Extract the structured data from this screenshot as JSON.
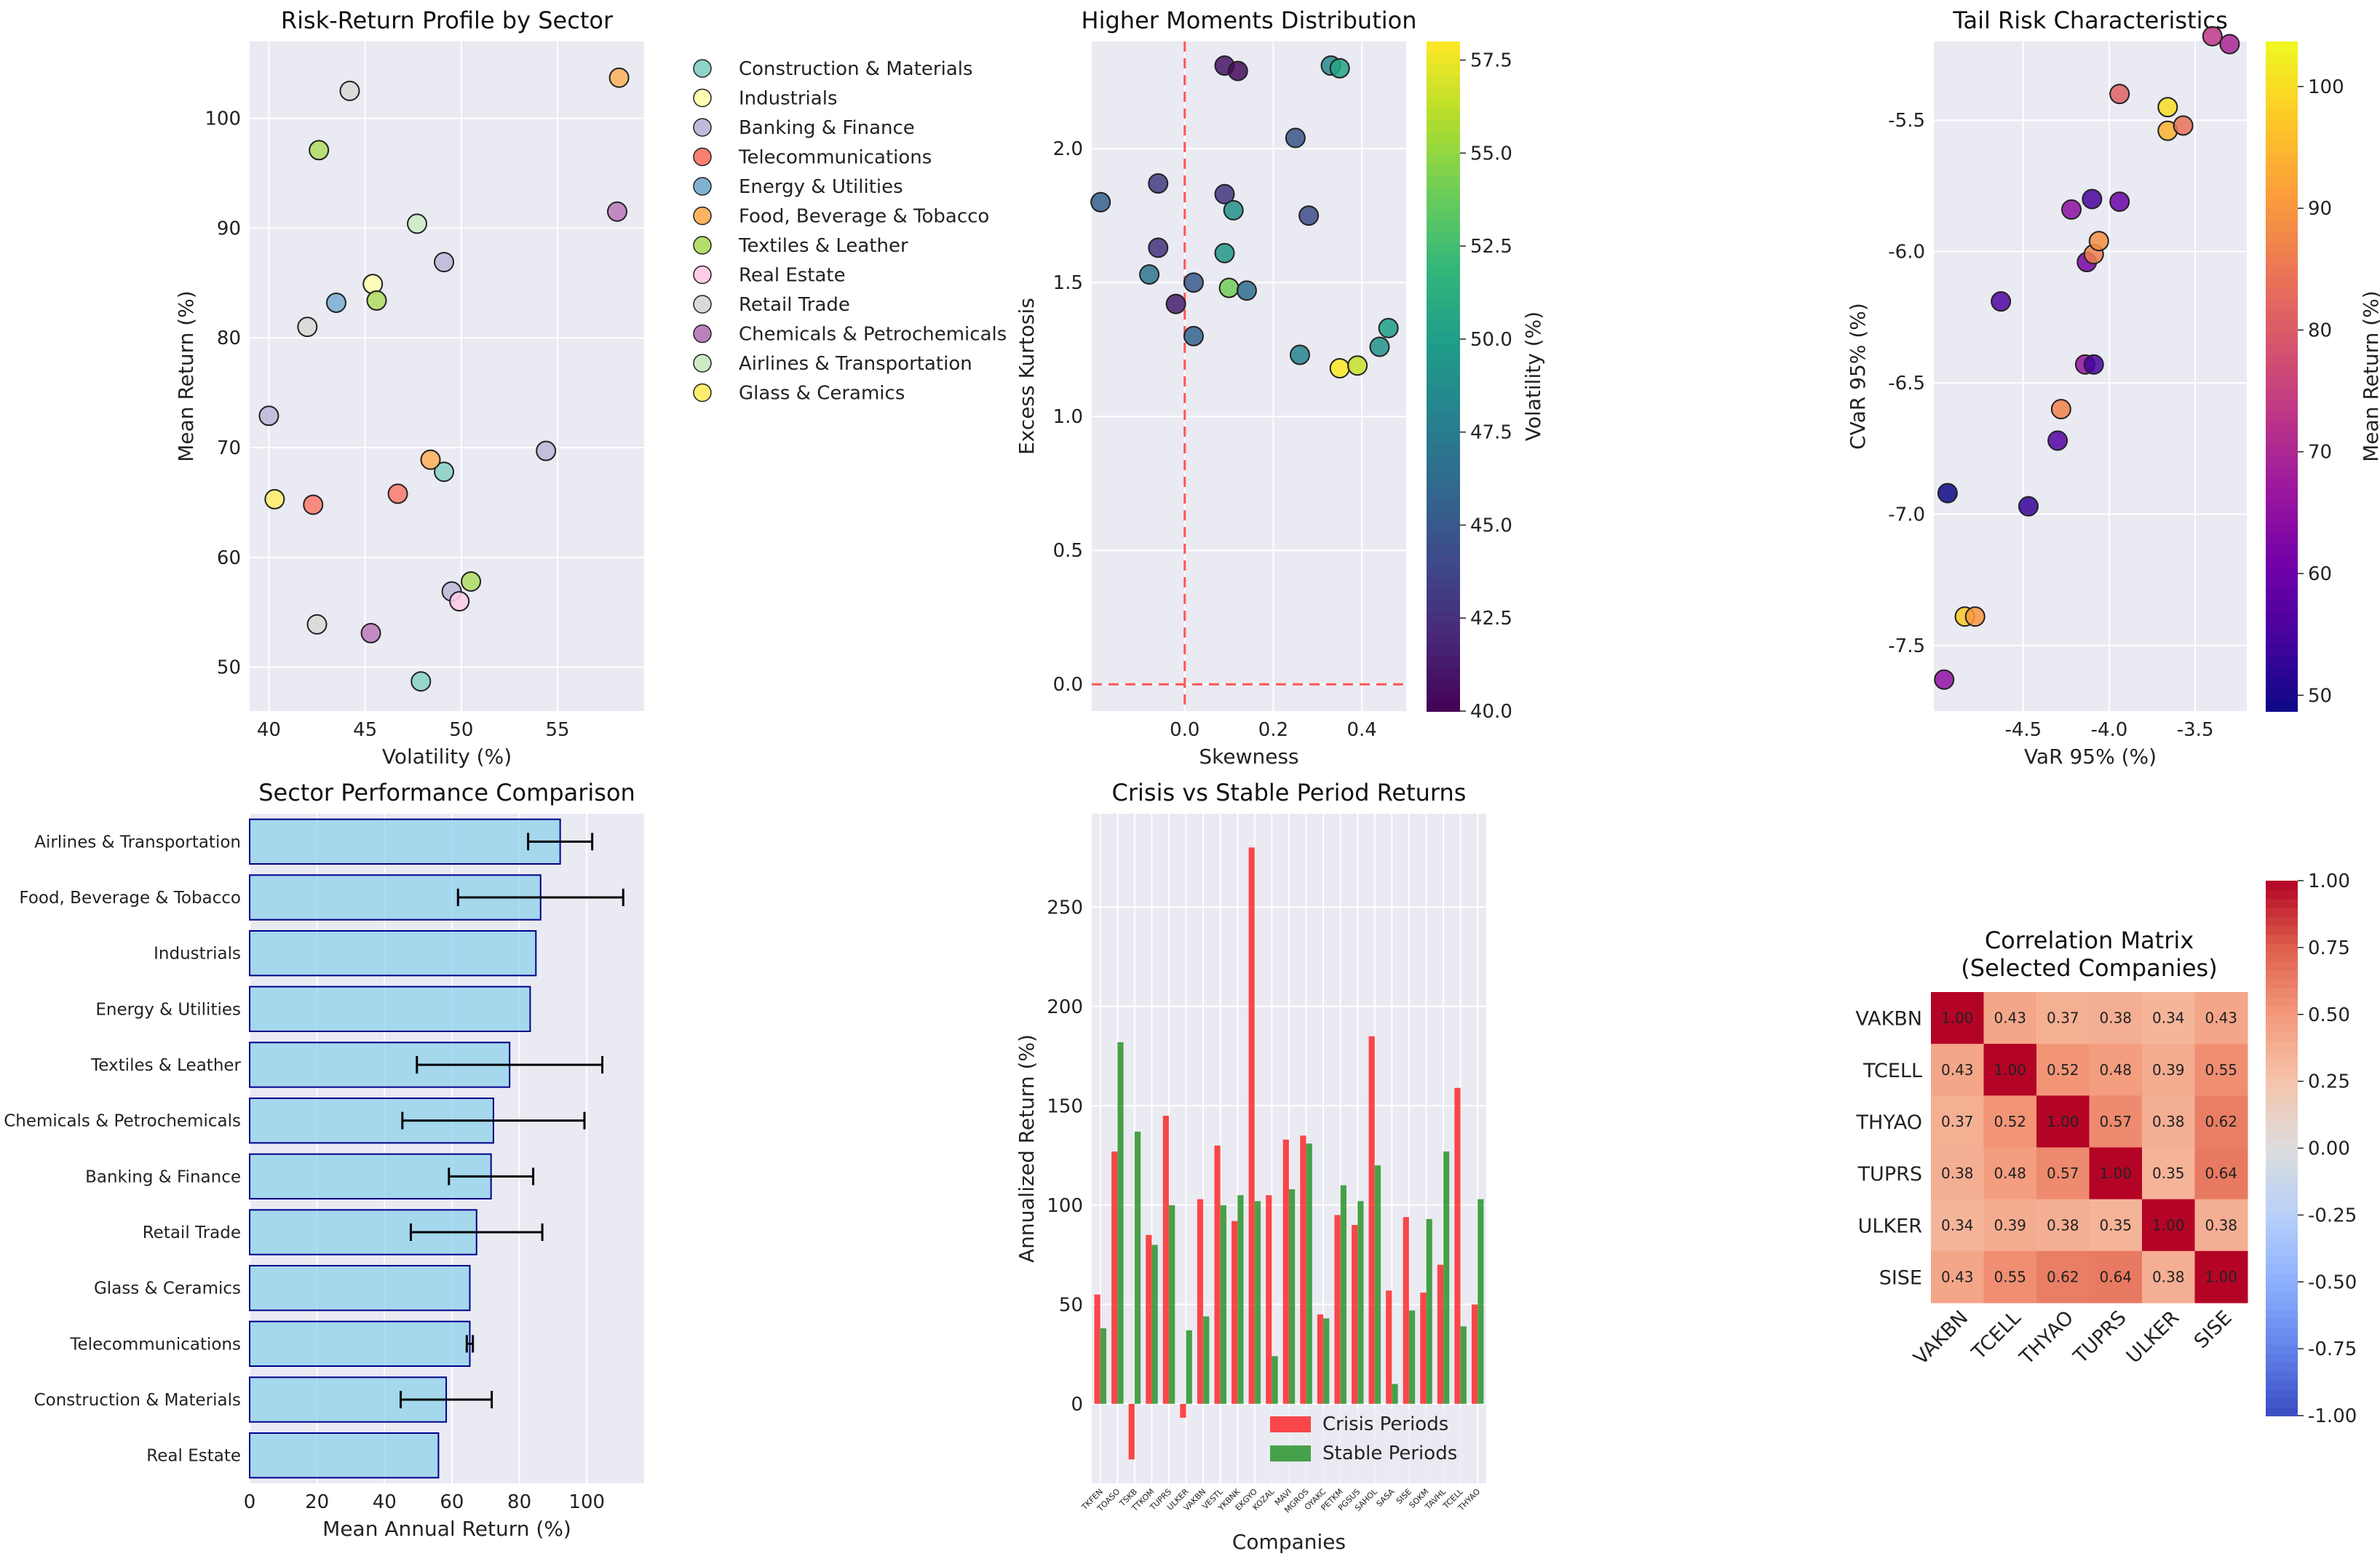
{
  "figure": {
    "background": "#ffffff",
    "plot_bg": "#eaeaf2",
    "grid_color": "#ffffff"
  },
  "chart_data": [
    {
      "id": "risk-return",
      "type": "scatter",
      "title": "Risk-Return Profile by Sector",
      "xlabel": "Volatility (%)",
      "ylabel": "Mean Return (%)",
      "xlim": [
        39,
        59.5
      ],
      "ylim": [
        46,
        107
      ],
      "xticks": [
        40,
        45,
        50,
        55
      ],
      "yticks": [
        50,
        60,
        70,
        80,
        90,
        100
      ],
      "legend_position": "outside-right",
      "sectors": [
        {
          "name": "Construction & Materials",
          "color": "#8dd3c7"
        },
        {
          "name": "Industrials",
          "color": "#ffffb3"
        },
        {
          "name": "Banking & Finance",
          "color": "#bebada"
        },
        {
          "name": "Telecommunications",
          "color": "#fb8072"
        },
        {
          "name": "Energy & Utilities",
          "color": "#80b1d3"
        },
        {
          "name": "Food, Beverage & Tobacco",
          "color": "#fdb462"
        },
        {
          "name": "Textiles & Leather",
          "color": "#b3de69"
        },
        {
          "name": "Real Estate",
          "color": "#fccde5"
        },
        {
          "name": "Retail Trade",
          "color": "#d9d9d9"
        },
        {
          "name": "Chemicals & Petrochemicals",
          "color": "#bc80bd"
        },
        {
          "name": "Airlines & Transportation",
          "color": "#ccebc5"
        },
        {
          "name": "Glass & Ceramics",
          "color": "#ffed6f"
        }
      ],
      "points": [
        {
          "x": 49.1,
          "y": 67.8,
          "s": 0
        },
        {
          "x": 47.9,
          "y": 48.7,
          "s": 0
        },
        {
          "x": 45.4,
          "y": 84.9,
          "s": 1
        },
        {
          "x": 40.0,
          "y": 72.9,
          "s": 2
        },
        {
          "x": 54.4,
          "y": 69.7,
          "s": 2
        },
        {
          "x": 49.1,
          "y": 86.9,
          "s": 2
        },
        {
          "x": 49.5,
          "y": 56.9,
          "s": 2
        },
        {
          "x": 42.3,
          "y": 64.8,
          "s": 3
        },
        {
          "x": 46.7,
          "y": 65.8,
          "s": 3
        },
        {
          "x": 43.5,
          "y": 83.2,
          "s": 4
        },
        {
          "x": 58.2,
          "y": 103.7,
          "s": 5
        },
        {
          "x": 48.4,
          "y": 68.9,
          "s": 5
        },
        {
          "x": 42.6,
          "y": 97.1,
          "s": 6
        },
        {
          "x": 45.6,
          "y": 83.4,
          "s": 6
        },
        {
          "x": 50.5,
          "y": 57.8,
          "s": 6
        },
        {
          "x": 49.9,
          "y": 56.0,
          "s": 7
        },
        {
          "x": 44.2,
          "y": 102.5,
          "s": 8
        },
        {
          "x": 42.0,
          "y": 81.0,
          "s": 8
        },
        {
          "x": 42.5,
          "y": 53.9,
          "s": 8
        },
        {
          "x": 58.1,
          "y": 91.5,
          "s": 9
        },
        {
          "x": 45.3,
          "y": 53.1,
          "s": 9
        },
        {
          "x": 47.7,
          "y": 90.4,
          "s": 10
        },
        {
          "x": 40.3,
          "y": 65.3,
          "s": 11
        }
      ]
    },
    {
      "id": "higher-moments",
      "type": "scatter",
      "title": "Higher Moments Distribution",
      "xlabel": "Skewness",
      "ylabel": "Excess Kurtosis",
      "xlim": [
        -0.21,
        0.5
      ],
      "ylim": [
        -0.1,
        2.4
      ],
      "xticks": [
        0.0,
        0.2,
        0.4
      ],
      "yticks": [
        0.0,
        0.5,
        1.0,
        1.5,
        2.0
      ],
      "colorbar": {
        "label": "Volatility (%)",
        "min": 40.0,
        "max": 58.0,
        "ticks": [
          40.0,
          42.5,
          45.0,
          47.5,
          50.0,
          52.5,
          55.0,
          57.5
        ]
      },
      "reference_lines": {
        "x": 0,
        "y": 0
      },
      "points": [
        {
          "x": -0.19,
          "y": 1.8,
          "c": 45.5
        },
        {
          "x": -0.06,
          "y": 1.87,
          "c": 43.2
        },
        {
          "x": -0.08,
          "y": 1.53,
          "c": 47.0
        },
        {
          "x": -0.06,
          "y": 1.63,
          "c": 42.5
        },
        {
          "x": -0.02,
          "y": 1.42,
          "c": 41.5
        },
        {
          "x": 0.02,
          "y": 1.5,
          "c": 45.0
        },
        {
          "x": 0.02,
          "y": 1.3,
          "c": 45.8
        },
        {
          "x": 0.09,
          "y": 2.31,
          "c": 41.0
        },
        {
          "x": 0.12,
          "y": 2.29,
          "c": 40.5
        },
        {
          "x": 0.09,
          "y": 1.83,
          "c": 42.8
        },
        {
          "x": 0.09,
          "y": 1.61,
          "c": 49.5
        },
        {
          "x": 0.11,
          "y": 1.77,
          "c": 49.0
        },
        {
          "x": 0.1,
          "y": 1.48,
          "c": 54.0
        },
        {
          "x": 0.14,
          "y": 1.47,
          "c": 46.5
        },
        {
          "x": 0.25,
          "y": 2.04,
          "c": 44.8
        },
        {
          "x": 0.28,
          "y": 1.75,
          "c": 44.2
        },
        {
          "x": 0.33,
          "y": 2.31,
          "c": 48.5
        },
        {
          "x": 0.35,
          "y": 2.3,
          "c": 50.5
        },
        {
          "x": 0.26,
          "y": 1.23,
          "c": 48.0
        },
        {
          "x": 0.35,
          "y": 1.18,
          "c": 58.0
        },
        {
          "x": 0.39,
          "y": 1.19,
          "c": 56.5
        },
        {
          "x": 0.44,
          "y": 1.26,
          "c": 49.2
        },
        {
          "x": 0.46,
          "y": 1.33,
          "c": 50.0
        }
      ]
    },
    {
      "id": "tail-risk",
      "type": "scatter",
      "title": "Tail Risk Characteristics",
      "xlabel": "VaR 95% (%)",
      "ylabel": "CVaR 95% (%)",
      "xlim": [
        -5.02,
        -3.2
      ],
      "ylim": [
        -7.75,
        -5.2
      ],
      "xticks": [
        -4.5,
        -4.0,
        -3.5
      ],
      "yticks": [
        -7.5,
        -7.0,
        -6.5,
        -6.0,
        -5.5
      ],
      "colorbar": {
        "label": "Mean Return (%)",
        "min": 48.7,
        "max": 103.7,
        "ticks": [
          50,
          60,
          70,
          80,
          90,
          100
        ]
      },
      "points": [
        {
          "x": -4.96,
          "y": -7.63,
          "c": 65.3
        },
        {
          "x": -4.94,
          "y": -6.92,
          "c": 48.7
        },
        {
          "x": -4.84,
          "y": -7.39,
          "c": 97.1
        },
        {
          "x": -4.78,
          "y": -7.39,
          "c": 90.4
        },
        {
          "x": -4.63,
          "y": -6.19,
          "c": 56.0
        },
        {
          "x": -4.47,
          "y": -6.97,
          "c": 53.1
        },
        {
          "x": -4.3,
          "y": -6.72,
          "c": 56.9
        },
        {
          "x": -4.28,
          "y": -6.6,
          "c": 86.9
        },
        {
          "x": -4.22,
          "y": -5.84,
          "c": 64.8
        },
        {
          "x": -4.14,
          "y": -6.43,
          "c": 65.8
        },
        {
          "x": -4.13,
          "y": -6.04,
          "c": 62.0
        },
        {
          "x": -4.1,
          "y": -5.8,
          "c": 55.0
        },
        {
          "x": -4.09,
          "y": -6.43,
          "c": 54.5
        },
        {
          "x": -4.09,
          "y": -6.01,
          "c": 86.5
        },
        {
          "x": -4.06,
          "y": -5.96,
          "c": 89.0
        },
        {
          "x": -3.94,
          "y": -5.81,
          "c": 60.0
        },
        {
          "x": -3.94,
          "y": -5.4,
          "c": 81.0
        },
        {
          "x": -3.66,
          "y": -5.45,
          "c": 100.0
        },
        {
          "x": -3.66,
          "y": -5.54,
          "c": 94.0
        },
        {
          "x": -3.57,
          "y": -5.52,
          "c": 84.0
        },
        {
          "x": -3.4,
          "y": -5.18,
          "c": 72.9
        },
        {
          "x": -3.3,
          "y": -5.21,
          "c": 69.7
        }
      ]
    },
    {
      "id": "sector-performance",
      "type": "bar",
      "orientation": "horizontal",
      "title": "Sector Performance Comparison",
      "xlabel": "Mean Annual Return (%)",
      "ylabel": "",
      "xlim": [
        0,
        117
      ],
      "xticks": [
        0,
        20,
        40,
        60,
        80,
        100
      ],
      "bar_color": "#87ceeb",
      "bar_edge": "#00008b",
      "categories": [
        "Airlines & Transportation",
        "Food, Beverage & Tobacco",
        "Industrials",
        "Energy & Utilities",
        "Textiles & Leather",
        "Chemicals & Petrochemicals",
        "Banking & Finance",
        "Retail Trade",
        "Glass & Ceramics",
        "Telecommunications",
        "Construction & Materials",
        "Real Estate"
      ],
      "values": [
        92.1,
        86.3,
        84.9,
        83.2,
        77.1,
        72.3,
        71.6,
        67.3,
        65.3,
        65.3,
        58.3,
        56.0
      ],
      "errors": [
        9.5,
        24.5,
        0,
        0,
        27.5,
        27.0,
        12.5,
        19.5,
        0,
        0.9,
        13.5,
        0
      ]
    },
    {
      "id": "crisis-vs-stable",
      "type": "bar",
      "title": "Crisis vs Stable Period Returns",
      "xlabel": "Companies",
      "ylabel": "Annualized Return (%)",
      "ylim": [
        -40,
        297
      ],
      "yticks": [
        0,
        50,
        100,
        150,
        200,
        250
      ],
      "legend_position": "lower-right",
      "categories": [
        "TKFEN",
        "TOASO",
        "TSKB",
        "TTKOM",
        "TUPRS",
        "ULKER",
        "VAKBN",
        "VESTL",
        "YKBNK",
        "EKGYO",
        "KOZAL",
        "MAVI",
        "MGROS",
        "OYAKC",
        "PETKM",
        "PGSUS",
        "SAHOL",
        "SASA",
        "SISE",
        "SOKM",
        "TAVHL",
        "TCELL",
        "THYAO"
      ],
      "series": [
        {
          "name": "Crisis Periods",
          "color": "#ff0000",
          "values": [
            55,
            127,
            -28,
            85,
            145,
            -7,
            103,
            130,
            92,
            280,
            105,
            133,
            135,
            45,
            95,
            90,
            185,
            57,
            94,
            56,
            70,
            159,
            50
          ]
        },
        {
          "name": "Stable Periods",
          "color": "#008000",
          "values": [
            38,
            182,
            137,
            80,
            100,
            37,
            44,
            100,
            105,
            102,
            24,
            108,
            131,
            43,
            110,
            102,
            120,
            10,
            47,
            93,
            127,
            39,
            103
          ]
        }
      ]
    },
    {
      "id": "correlation-matrix",
      "type": "heatmap",
      "title": "Correlation Matrix\n(Selected Companies)",
      "title_lines": [
        "Correlation Matrix",
        "(Selected Companies)"
      ],
      "labels": [
        "VAKBN",
        "TCELL",
        "THYAO",
        "TUPRS",
        "ULKER",
        "SISE"
      ],
      "matrix": [
        [
          1.0,
          0.43,
          0.37,
          0.38,
          0.34,
          0.43
        ],
        [
          0.43,
          1.0,
          0.52,
          0.48,
          0.39,
          0.55
        ],
        [
          0.37,
          0.52,
          1.0,
          0.57,
          0.38,
          0.62
        ],
        [
          0.38,
          0.48,
          0.57,
          1.0,
          0.35,
          0.64
        ],
        [
          0.34,
          0.39,
          0.38,
          0.35,
          1.0,
          0.38
        ],
        [
          0.43,
          0.55,
          0.62,
          0.64,
          0.38,
          1.0
        ]
      ],
      "display_text": [
        [
          "1.00",
          "0.43",
          "0.37",
          "0.38",
          "0.34",
          "0.43"
        ],
        [
          "0.43",
          "1.00",
          "0.52",
          "0.48",
          "0.39",
          "0.55"
        ],
        [
          "0.37",
          "0.52",
          "1.00",
          "0.57",
          "0.38",
          "0.62"
        ],
        [
          "0.38",
          "0.48",
          "0.57",
          "1.00",
          "0.35",
          "0.64"
        ],
        [
          "0.34",
          "0.39",
          "0.38",
          "0.35",
          "1.00",
          "0.38"
        ],
        [
          "0.43",
          "0.55",
          "0.62",
          "0.64",
          "0.38",
          "1.00"
        ]
      ],
      "colorbar": {
        "min": -1.0,
        "max": 1.0,
        "ticks": [
          "1.00",
          "0.75",
          "0.50",
          "0.25",
          "0.00",
          "-0.25",
          "-0.50",
          "-0.75",
          "-1.00"
        ],
        "tick_values": [
          1.0,
          0.75,
          0.5,
          0.25,
          0.0,
          -0.25,
          -0.5,
          -0.75,
          -1.0
        ]
      }
    }
  ]
}
